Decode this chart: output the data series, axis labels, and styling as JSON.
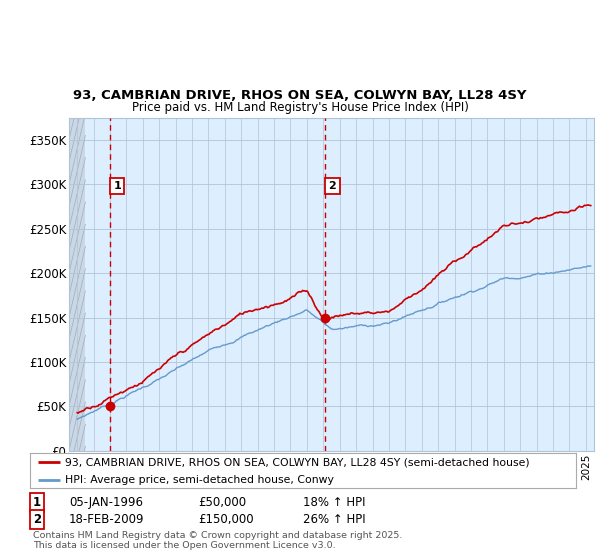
{
  "title1": "93, CAMBRIAN DRIVE, RHOS ON SEA, COLWYN BAY, LL28 4SY",
  "title2": "Price paid vs. HM Land Registry's House Price Index (HPI)",
  "bg_color": "#ddeeff",
  "hatch_bg_color": "#c8d8e8",
  "grid_color": "#b0c4d8",
  "line1_color": "#cc0000",
  "line2_color": "#6699cc",
  "vline_color": "#cc0000",
  "marker_color": "#cc0000",
  "sale1_date": 1996.0,
  "sale1_price": 50000,
  "sale2_date": 2009.12,
  "sale2_price": 150000,
  "ylim_max": 375000,
  "yticks": [
    0,
    50000,
    100000,
    150000,
    200000,
    250000,
    300000,
    350000
  ],
  "ytick_labels": [
    "£0",
    "£50K",
    "£100K",
    "£150K",
    "£200K",
    "£250K",
    "£300K",
    "£350K"
  ],
  "xmin": 1993.5,
  "xmax": 2025.5,
  "legend_line1": "93, CAMBRIAN DRIVE, RHOS ON SEA, COLWYN BAY, LL28 4SY (semi-detached house)",
  "legend_line2": "HPI: Average price, semi-detached house, Conwy",
  "footnote3": "Contains HM Land Registry data © Crown copyright and database right 2025.",
  "footnote4": "This data is licensed under the Open Government Licence v3.0."
}
